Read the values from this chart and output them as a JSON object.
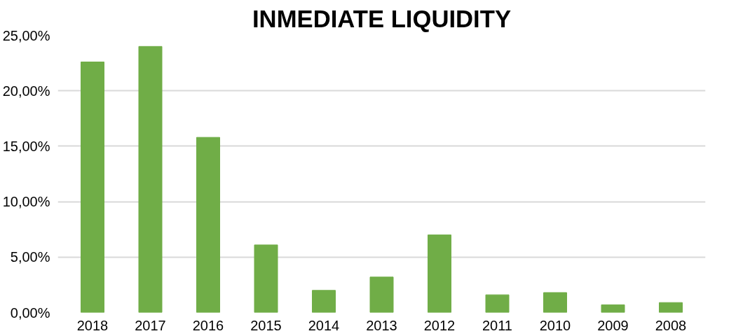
{
  "chart_data": {
    "type": "bar",
    "title": "INMEDIATE LIQUIDITY",
    "categories": [
      "2018",
      "2017",
      "2016",
      "2015",
      "2014",
      "2013",
      "2012",
      "2011",
      "2010",
      "2009",
      "2008"
    ],
    "values": [
      22.6,
      24.0,
      15.8,
      6.1,
      2.0,
      3.2,
      7.0,
      1.6,
      1.8,
      0.7,
      0.9
    ],
    "color": "#70ad47",
    "ylim": [
      0,
      25
    ],
    "yticks": [
      {
        "value": 0,
        "label": "0,00%"
      },
      {
        "value": 5,
        "label": "5,00%"
      },
      {
        "value": 10,
        "label": "10,00%"
      },
      {
        "value": 15,
        "label": "15,00%"
      },
      {
        "value": 20,
        "label": "20,00%"
      },
      {
        "value": 25,
        "label": "25,00%"
      }
    ],
    "grid": "y"
  }
}
